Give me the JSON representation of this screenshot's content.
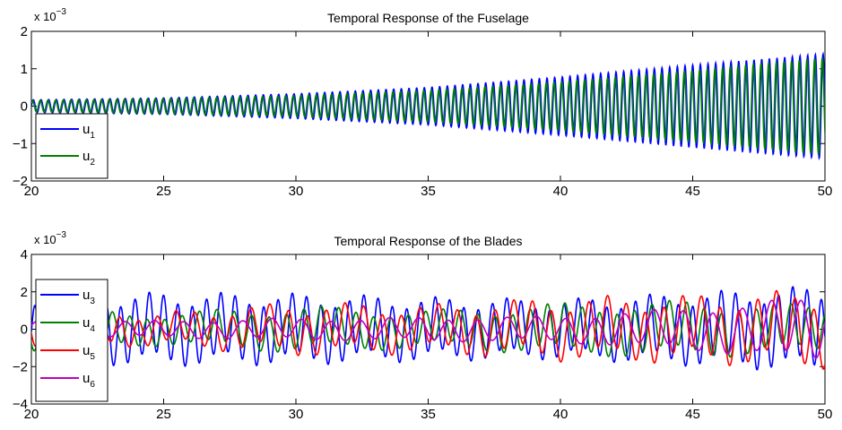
{
  "chart_data": [
    {
      "type": "line",
      "title": "Temporal Response of the Fuselage",
      "xlabel": "",
      "ylabel": "",
      "y_exponent": "x 10",
      "y_exponent_power": "−3",
      "xlim": [
        20,
        50
      ],
      "ylim": [
        -2,
        2
      ],
      "xticks": [
        "20",
        "25",
        "30",
        "35",
        "40",
        "45",
        "50"
      ],
      "yticks": [
        "2",
        "1",
        "0",
        "−1",
        "−2"
      ],
      "legend_location": "lower-left",
      "series": [
        {
          "name": "u",
          "sub": "1",
          "color": "#0000ff",
          "freq": 3.45,
          "phase": 0.0,
          "components": [],
          "envelope": {
            "x": [
              20,
              25,
              30,
              35,
              40,
              45,
              50
            ],
            "amplitude": [
              0.17,
              0.22,
              0.33,
              0.5,
              0.78,
              1.1,
              1.4
            ]
          }
        },
        {
          "name": "u",
          "sub": "2",
          "color": "#008000",
          "freq": 3.45,
          "phase": 0.6,
          "components": [],
          "envelope": {
            "x": [
              20,
              25,
              30,
              35,
              40,
              45,
              50
            ],
            "amplitude": [
              0.15,
              0.2,
              0.28,
              0.42,
              0.65,
              0.95,
              1.3
            ]
          }
        }
      ]
    },
    {
      "type": "line",
      "title": "Temporal Response of the Blades",
      "xlabel": "",
      "ylabel": "",
      "y_exponent": "x 10",
      "y_exponent_power": "−3",
      "xlim": [
        20,
        50
      ],
      "ylim": [
        -4,
        4
      ],
      "xticks": [
        "20",
        "25",
        "30",
        "35",
        "40",
        "45",
        "50"
      ],
      "yticks": [
        "4",
        "2",
        "0",
        "−2",
        "−4"
      ],
      "legend_location": "left",
      "series": [
        {
          "name": "u",
          "sub": "3",
          "color": "#0000ff",
          "freq": 1.85,
          "phase": 0.0,
          "envelope": {
            "x": [
              20,
              25,
              30,
              35,
              40,
              45,
              50
            ],
            "amplitude": [
              1.5,
              1.6,
              1.55,
              1.4,
              1.3,
              1.6,
              1.9
            ]
          },
          "components": [
            {
              "f": 0.37,
              "a": 0.25,
              "p": 1.0
            }
          ]
        },
        {
          "name": "u",
          "sub": "4",
          "color": "#008000",
          "freq": 1.52,
          "phase": 1.2,
          "envelope": {
            "x": [
              20,
              25,
              30,
              35,
              40,
              45,
              50
            ],
            "amplitude": [
              0.9,
              0.7,
              1.0,
              0.8,
              1.1,
              1.2,
              1.0
            ]
          },
          "components": [
            {
              "f": 0.23,
              "a": 0.3,
              "p": 0.5
            }
          ]
        },
        {
          "name": "u",
          "sub": "5",
          "color": "#ff0000",
          "freq": 1.41,
          "phase": 2.1,
          "envelope": {
            "x": [
              20,
              25,
              30,
              35,
              40,
              45,
              50
            ],
            "amplitude": [
              0.8,
              0.7,
              1.1,
              1.0,
              1.3,
              1.4,
              1.6
            ]
          },
          "components": [
            {
              "f": 0.31,
              "a": 0.35,
              "p": 2.0
            }
          ]
        },
        {
          "name": "u",
          "sub": "6",
          "color": "#bf00bf",
          "freq": 0.9,
          "phase": 0.4,
          "envelope": {
            "x": [
              20,
              25,
              30,
              35,
              40,
              45,
              50
            ],
            "amplitude": [
              0.35,
              0.4,
              0.5,
              0.55,
              0.6,
              1.0,
              1.5
            ]
          },
          "components": [
            {
              "f": 0.21,
              "a": 0.2,
              "p": 0.7
            }
          ]
        }
      ]
    }
  ]
}
